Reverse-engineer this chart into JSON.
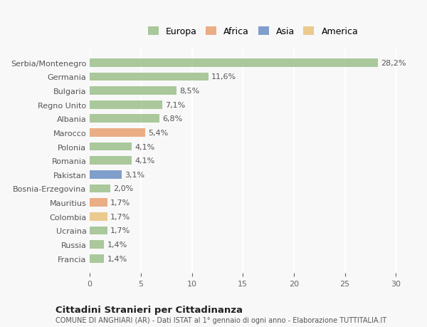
{
  "categories": [
    "Francia",
    "Russia",
    "Ucraina",
    "Colombia",
    "Mauritius",
    "Bosnia-Erzegovina",
    "Pakistan",
    "Romania",
    "Polonia",
    "Marocco",
    "Albania",
    "Regno Unito",
    "Bulgaria",
    "Germania",
    "Serbia/Montenegro"
  ],
  "values": [
    1.4,
    1.4,
    1.7,
    1.7,
    1.7,
    2.0,
    3.1,
    4.1,
    4.1,
    5.4,
    6.8,
    7.1,
    8.5,
    11.6,
    28.2
  ],
  "labels": [
    "1,4%",
    "1,4%",
    "1,7%",
    "1,7%",
    "1,7%",
    "2,0%",
    "3,1%",
    "4,1%",
    "4,1%",
    "5,4%",
    "6,8%",
    "7,1%",
    "8,5%",
    "11,6%",
    "28,2%"
  ],
  "colors": [
    "#9dc08b",
    "#9dc08b",
    "#9dc08b",
    "#e8c27a",
    "#e8a070",
    "#9dc08b",
    "#6b8ec4",
    "#9dc08b",
    "#9dc08b",
    "#e8a070",
    "#9dc08b",
    "#9dc08b",
    "#9dc08b",
    "#9dc08b",
    "#9dc08b"
  ],
  "legend_labels": [
    "Europa",
    "Africa",
    "Asia",
    "America"
  ],
  "legend_colors": [
    "#9dc08b",
    "#e8a070",
    "#6b8ec4",
    "#e8c27a"
  ],
  "xlim": [
    0,
    32
  ],
  "xticks": [
    0,
    5,
    10,
    15,
    20,
    25,
    30
  ],
  "title_bold": "Cittadini Stranieri per Cittadinanza",
  "subtitle": "COMUNE DI ANGHIARI (AR) - Dati ISTAT al 1° gennaio di ogni anno - Elaborazione TUTTITALIA.IT",
  "background_color": "#f8f8f8",
  "bar_alpha": 0.85,
  "grid_color": "#ffffff"
}
